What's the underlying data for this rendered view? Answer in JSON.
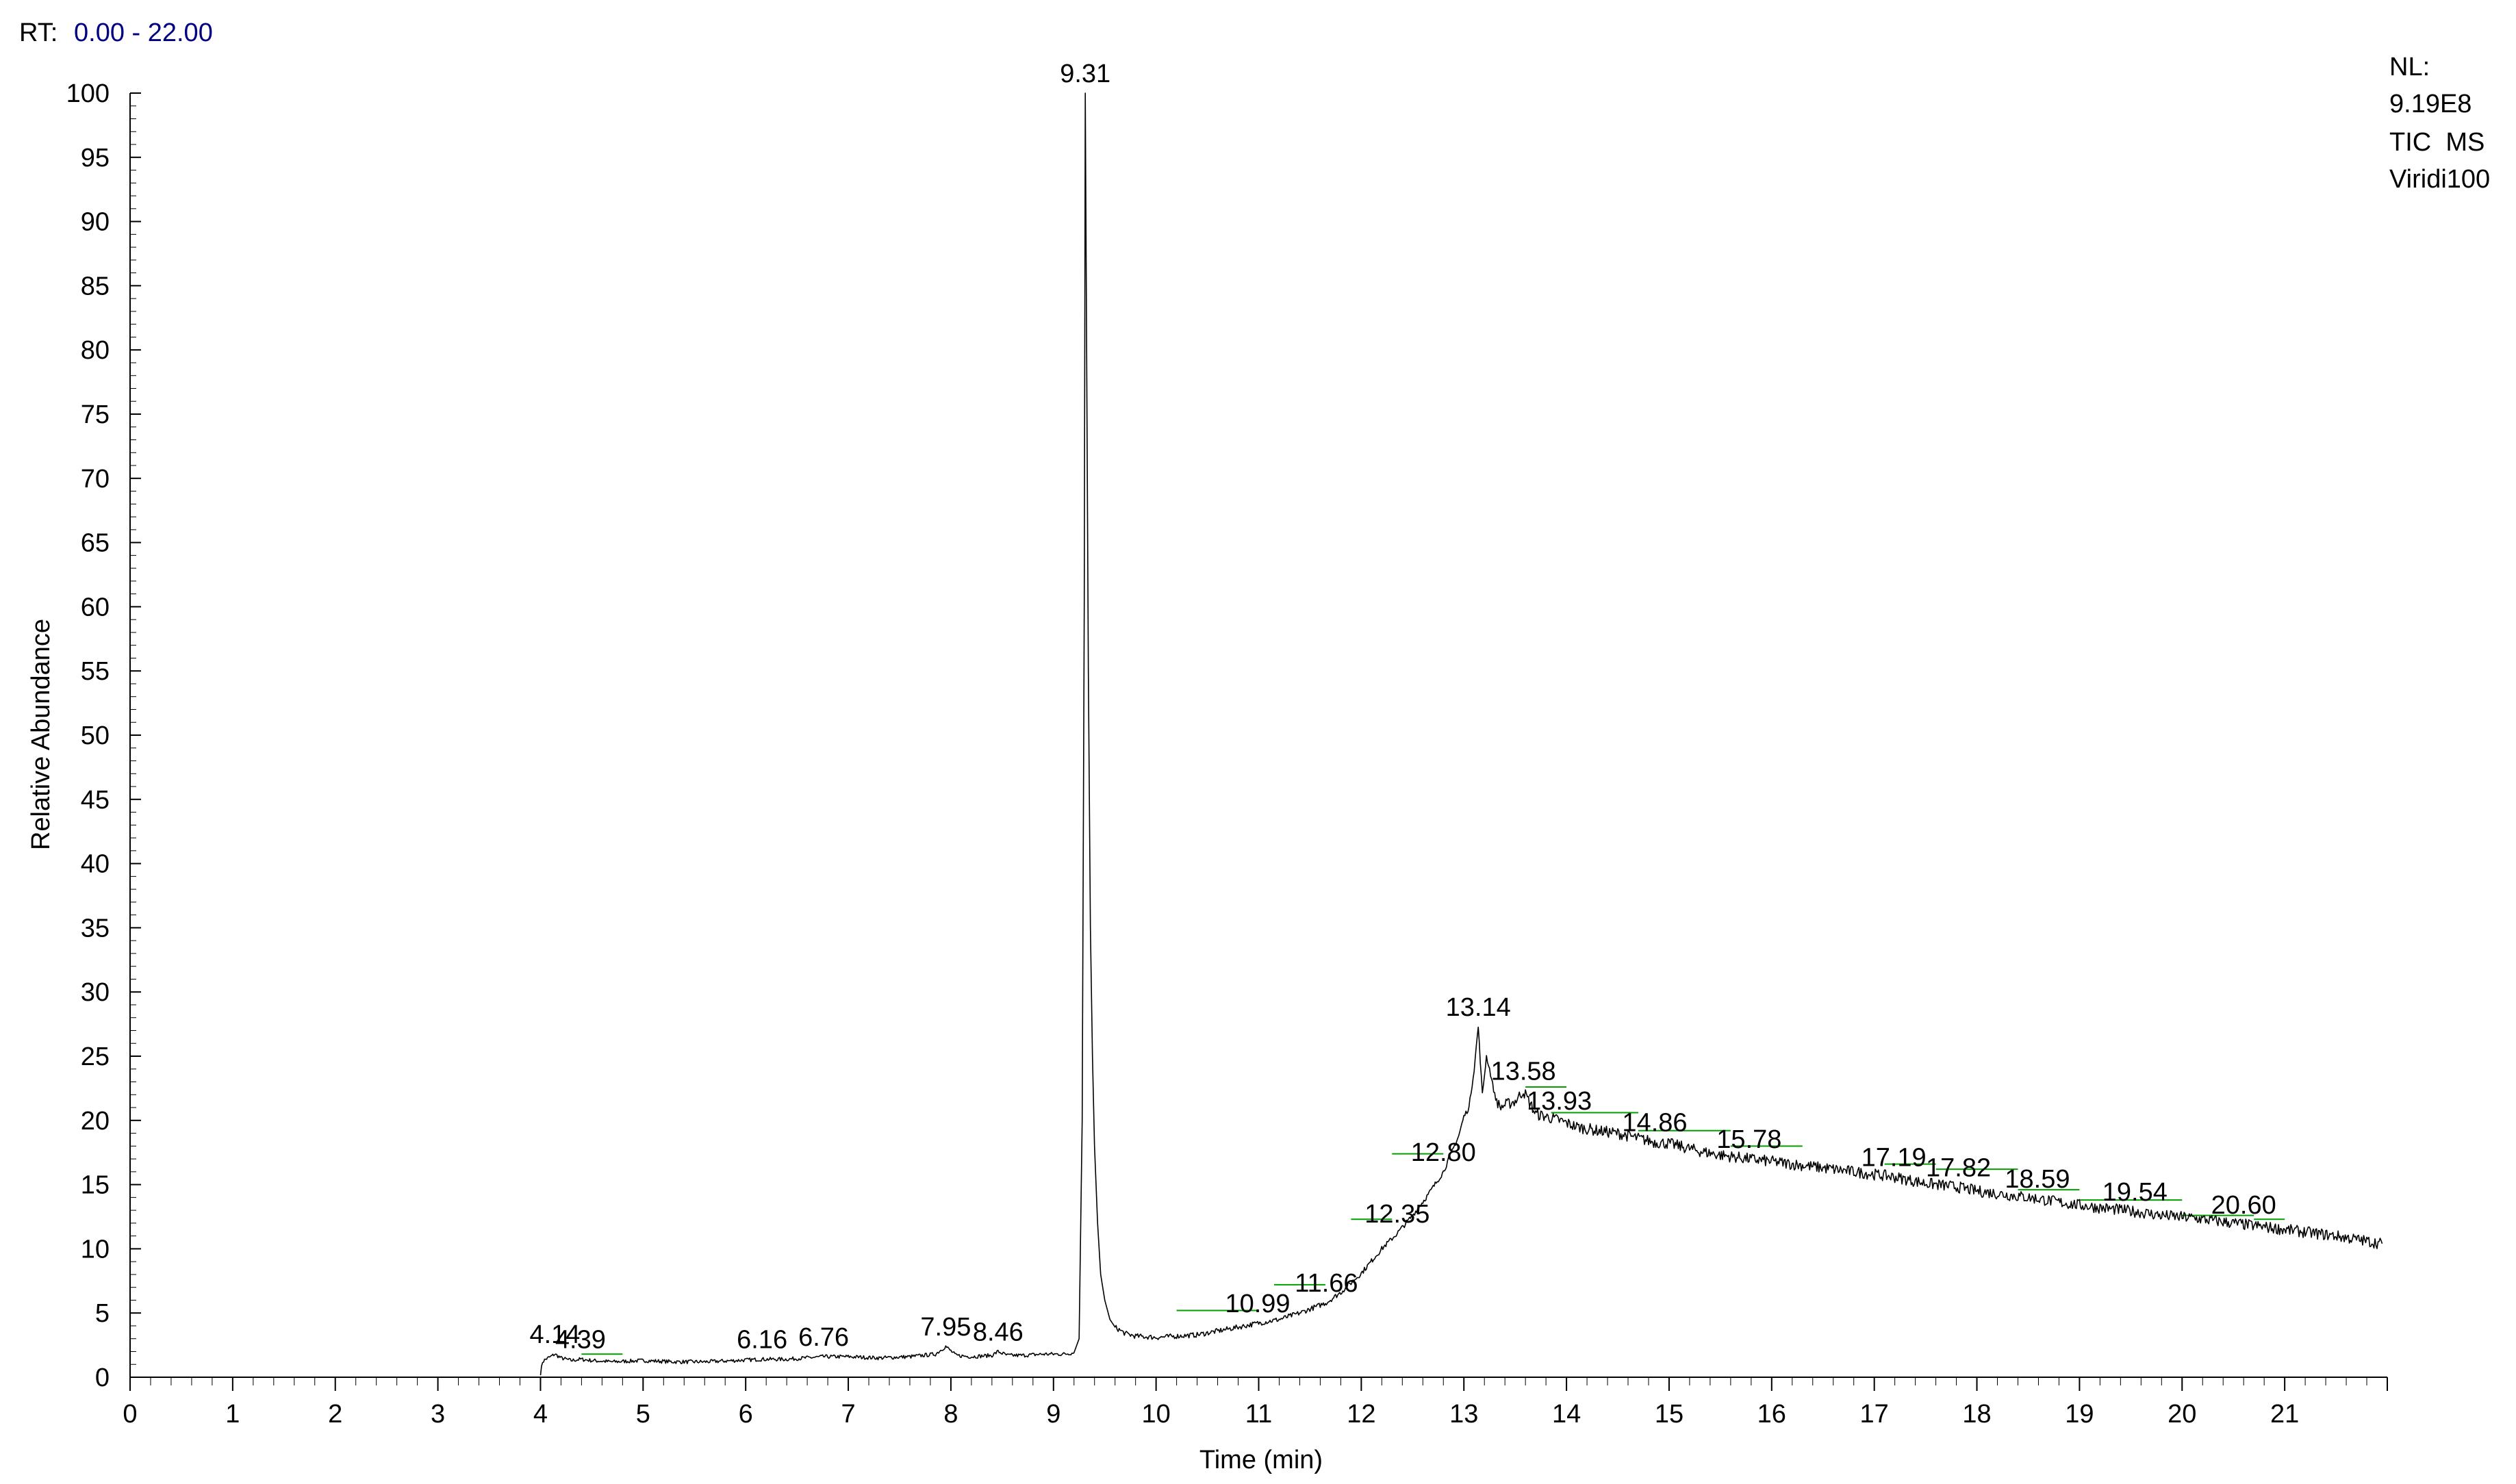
{
  "header": {
    "rt_label": "RT:",
    "rt_range": "0.00 - 22.00",
    "nl_label": "NL:",
    "nl_value": "9.19E8",
    "trace_type": "TIC  MS",
    "sample_name": "Viridi100"
  },
  "colors": {
    "trace": "#000000",
    "baseline_marks": "#00a000",
    "header_value": "#000080",
    "axis": "#000000"
  },
  "chart_data": {
    "type": "line",
    "title": "",
    "xlabel": "Time (min)",
    "ylabel": "Relative Abundance",
    "xlim": [
      0,
      22
    ],
    "ylim": [
      0,
      100
    ],
    "xticks": [
      0,
      1,
      2,
      3,
      4,
      5,
      6,
      7,
      8,
      9,
      10,
      11,
      12,
      13,
      14,
      15,
      16,
      17,
      18,
      19,
      20,
      21
    ],
    "yticks": [
      0,
      5,
      10,
      15,
      20,
      25,
      30,
      35,
      40,
      45,
      50,
      55,
      60,
      65,
      70,
      75,
      80,
      85,
      90,
      95,
      100
    ],
    "grid": false,
    "series": [
      {
        "values_note": "",
        "x": [
          4.0,
          4.02,
          4.05,
          4.1,
          4.14,
          4.2,
          4.3,
          4.39,
          4.5,
          4.7,
          5.0,
          5.3,
          5.6,
          5.9,
          6.16,
          6.4,
          6.76,
          7.0,
          7.3,
          7.6,
          7.85,
          7.95,
          8.05,
          8.2,
          8.4,
          8.46,
          8.55,
          8.7,
          8.9,
          9.1,
          9.2,
          9.25,
          9.28,
          9.3,
          9.31,
          9.32,
          9.34,
          9.36,
          9.38,
          9.4,
          9.43,
          9.46,
          9.5,
          9.55,
          9.6,
          9.7,
          9.8,
          10.0,
          10.2,
          10.4,
          10.6,
          10.8,
          10.99,
          11.2,
          11.4,
          11.66,
          11.8,
          12.0,
          12.2,
          12.35,
          12.5,
          12.65,
          12.8,
          12.95,
          13.0,
          13.05,
          13.1,
          13.14,
          13.18,
          13.22,
          13.25,
          13.3,
          13.35,
          13.4,
          13.5,
          13.58,
          13.7,
          13.8,
          13.93,
          14.1,
          14.3,
          14.5,
          14.7,
          14.86,
          15.0,
          15.3,
          15.5,
          15.78,
          16.0,
          16.3,
          16.6,
          16.9,
          17.19,
          17.5,
          17.82,
          18.0,
          18.3,
          18.59,
          18.9,
          19.2,
          19.54,
          19.8,
          20.1,
          20.4,
          20.6,
          20.9,
          21.2,
          21.5,
          21.8,
          21.95
        ],
        "y": [
          0.3,
          1.2,
          1.4,
          1.6,
          1.8,
          1.5,
          1.3,
          1.4,
          1.3,
          1.2,
          1.3,
          1.2,
          1.2,
          1.3,
          1.4,
          1.4,
          1.6,
          1.6,
          1.5,
          1.6,
          1.8,
          2.4,
          1.7,
          1.6,
          1.7,
          2.0,
          1.7,
          1.7,
          1.8,
          1.8,
          1.9,
          3.0,
          20.0,
          60.0,
          100.0,
          85.0,
          55.0,
          35.0,
          25.0,
          18.0,
          12.0,
          8.0,
          6.0,
          4.5,
          3.9,
          3.4,
          3.2,
          3.1,
          3.2,
          3.3,
          3.6,
          3.9,
          4.2,
          4.5,
          5.0,
          5.8,
          6.6,
          8.1,
          10.0,
          11.2,
          12.6,
          14.2,
          16.0,
          18.8,
          20.3,
          21.0,
          24.0,
          27.3,
          22.0,
          25.0,
          24.0,
          22.0,
          21.0,
          21.2,
          21.5,
          22.3,
          20.5,
          20.3,
          20.0,
          19.5,
          19.2,
          19.0,
          18.6,
          18.3,
          18.2,
          17.6,
          17.3,
          17.0,
          16.8,
          16.5,
          16.2,
          15.9,
          15.6,
          15.1,
          14.8,
          14.5,
          14.2,
          13.9,
          13.5,
          13.2,
          12.9,
          12.6,
          12.4,
          12.1,
          11.9,
          11.6,
          11.3,
          11.0,
          10.6,
          10.4
        ]
      }
    ],
    "peak_labels": [
      {
        "label": "4.14",
        "x": 4.14,
        "y": 1.8
      },
      {
        "label": "4.39",
        "x": 4.39,
        "y": 1.4
      },
      {
        "label": "6.16",
        "x": 6.16,
        "y": 1.4
      },
      {
        "label": "6.76",
        "x": 6.76,
        "y": 1.6
      },
      {
        "label": "7.95",
        "x": 7.95,
        "y": 2.4
      },
      {
        "label": "8.46",
        "x": 8.46,
        "y": 2.0
      },
      {
        "label": "9.31",
        "x": 9.31,
        "y": 100.0
      },
      {
        "label": "10.99",
        "x": 10.99,
        "y": 4.2
      },
      {
        "label": "11.66",
        "x": 11.66,
        "y": 5.8
      },
      {
        "label": "12.35",
        "x": 12.35,
        "y": 11.2
      },
      {
        "label": "12.80",
        "x": 12.8,
        "y": 16.0
      },
      {
        "label": "13.14",
        "x": 13.14,
        "y": 27.3
      },
      {
        "label": "13.58",
        "x": 13.58,
        "y": 22.3
      },
      {
        "label": "13.93",
        "x": 13.93,
        "y": 20.0
      },
      {
        "label": "14.86",
        "x": 14.86,
        "y": 18.3
      },
      {
        "label": "15.78",
        "x": 15.78,
        "y": 17.0
      },
      {
        "label": "17.19",
        "x": 17.19,
        "y": 15.6
      },
      {
        "label": "17.82",
        "x": 17.82,
        "y": 14.8
      },
      {
        "label": "18.59",
        "x": 18.59,
        "y": 13.9
      },
      {
        "label": "19.54",
        "x": 19.54,
        "y": 12.9
      },
      {
        "label": "20.60",
        "x": 20.6,
        "y": 11.9
      }
    ],
    "baseline_segments": [
      {
        "x0": 4.4,
        "x1": 4.8,
        "y": 1.8
      },
      {
        "x0": 10.2,
        "x1": 11.0,
        "y": 5.2
      },
      {
        "x0": 11.15,
        "x1": 11.65,
        "y": 7.2
      },
      {
        "x0": 11.9,
        "x1": 12.3,
        "y": 12.3
      },
      {
        "x0": 12.3,
        "x1": 12.8,
        "y": 17.4
      },
      {
        "x0": 13.6,
        "x1": 14.0,
        "y": 22.6
      },
      {
        "x0": 13.85,
        "x1": 14.7,
        "y": 20.6
      },
      {
        "x0": 14.7,
        "x1": 15.6,
        "y": 19.2
      },
      {
        "x0": 15.6,
        "x1": 16.3,
        "y": 18.0
      },
      {
        "x0": 17.1,
        "x1": 17.6,
        "y": 16.6
      },
      {
        "x0": 17.6,
        "x1": 18.4,
        "y": 16.2
      },
      {
        "x0": 18.4,
        "x1": 19.0,
        "y": 14.6
      },
      {
        "x0": 19.0,
        "x1": 20.0,
        "y": 13.8
      },
      {
        "x0": 20.0,
        "x1": 20.7,
        "y": 12.6
      },
      {
        "x0": 20.7,
        "x1": 21.0,
        "y": 12.3
      }
    ]
  }
}
